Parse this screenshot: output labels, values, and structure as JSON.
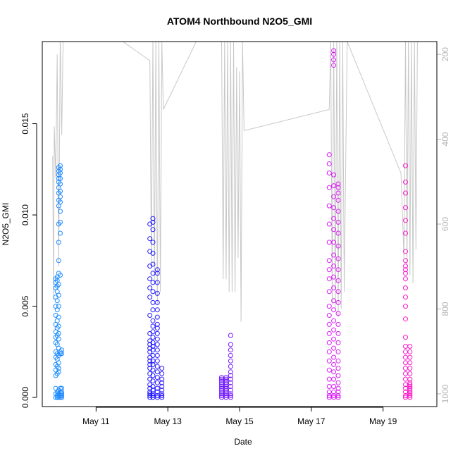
{
  "chart_data": {
    "type": "scatter",
    "title": "ATOM4 Northbound N2O5_GMI",
    "xlabel": "Date",
    "ylabel": "N2O5_GMI",
    "xlim": [
      "2018-05-09T12:00",
      "2018-05-20T12:00"
    ],
    "ylim": [
      -0.0005,
      0.0195
    ],
    "y_ticks": [
      {
        "value": 0.0,
        "label": "0.000"
      },
      {
        "value": 0.005,
        "label": "0.005"
      },
      {
        "value": 0.01,
        "label": "0.010"
      },
      {
        "value": 0.015,
        "label": "0.015"
      }
    ],
    "x_ticks": [
      {
        "value": "2018-05-11",
        "label": "May 11"
      },
      {
        "value": "2018-05-13",
        "label": "May 13"
      },
      {
        "value": "2018-05-15",
        "label": "May 15"
      },
      {
        "value": "2018-05-17",
        "label": "May 17"
      },
      {
        "value": "2018-05-19",
        "label": "May 19"
      }
    ],
    "right_axis": {
      "label": "",
      "range": [
        1030,
        170
      ],
      "reversed": true,
      "ticks": [
        {
          "value": 200,
          "label": "200"
        },
        {
          "value": 400,
          "label": "400"
        },
        {
          "value": 600,
          "label": "600"
        },
        {
          "value": 800,
          "label": "800"
        },
        {
          "value": 1000,
          "label": "1000"
        }
      ]
    },
    "point_color_ramp": [
      "#1e90ff",
      "#1a1aff",
      "#7a1aff",
      "#d51aff",
      "#ff14c8"
    ],
    "pressure_line_color": "#c8c8c8",
    "marker": "open-circle",
    "grid": false,
    "legend": "none",
    "series": [
      {
        "x": "2018-05-09T21:00",
        "values": [
          0.0,
          0.0002,
          0.0005,
          0.0012,
          0.0015,
          0.0018,
          0.0022,
          0.0025,
          0.003,
          0.0033,
          0.0036,
          0.004,
          0.0045,
          0.005,
          0.0055,
          0.006,
          0.0063,
          0.0065
        ]
      },
      {
        "x": "2018-05-09T22:00",
        "values": [
          0.0,
          0.0001,
          0.0003,
          0.0013,
          0.0017,
          0.0021,
          0.0024,
          0.0029,
          0.0034,
          0.0038,
          0.0042,
          0.0048,
          0.0053,
          0.0058,
          0.0061,
          0.0064,
          0.0066
        ]
      },
      {
        "x": "2018-05-09T23:00",
        "values": [
          0.0,
          0.0002,
          0.0004,
          0.0014,
          0.0016,
          0.0019,
          0.0023,
          0.0027,
          0.0032,
          0.0035,
          0.0039,
          0.0044,
          0.005,
          0.0056,
          0.0062,
          0.0068,
          0.0075,
          0.0085,
          0.0095,
          0.0105,
          0.0108,
          0.0112,
          0.0115,
          0.0118,
          0.012,
          0.0122,
          0.0124,
          0.0126
        ]
      },
      {
        "x": "2018-05-10T00:00",
        "values": [
          0.0,
          0.0001,
          0.0003,
          0.0005,
          0.0024,
          0.0025,
          0.0067,
          0.009,
          0.0096,
          0.0102,
          0.0107,
          0.011,
          0.0113,
          0.0117,
          0.012,
          0.0123,
          0.0125,
          0.0127
        ]
      },
      {
        "x": "2018-05-10T01:00",
        "values": [
          0.0,
          0.0001,
          0.0002,
          0.0003,
          0.0005,
          0.0024,
          0.0026
        ]
      },
      {
        "x": "2018-05-12T12:00",
        "values": [
          0.0,
          0.0001,
          0.0002,
          0.0003,
          0.0005,
          0.0007,
          0.001,
          0.0013,
          0.0016,
          0.0018,
          0.002,
          0.0022,
          0.0025,
          0.0027,
          0.0029,
          0.0031,
          0.0035,
          0.0045,
          0.0055,
          0.006,
          0.0065,
          0.0072,
          0.008,
          0.0087,
          0.0095
        ]
      },
      {
        "x": "2018-05-12T14:00",
        "values": [
          0.0,
          0.0001,
          0.0002,
          0.0004,
          0.0006,
          0.0009,
          0.0012,
          0.0015,
          0.0018,
          0.002,
          0.0023,
          0.0026,
          0.0028,
          0.003,
          0.0033,
          0.0036,
          0.0039,
          0.0042,
          0.0048,
          0.0052,
          0.0058,
          0.0063,
          0.0068,
          0.0073,
          0.0079,
          0.0085,
          0.0092,
          0.0096,
          0.0098
        ]
      },
      {
        "x": "2018-05-12T17:00",
        "values": [
          0.0,
          0.0001,
          0.0003,
          0.0005,
          0.0008,
          0.0011,
          0.0014,
          0.0017,
          0.002,
          0.0023,
          0.0026,
          0.0029,
          0.0032,
          0.0035,
          0.0038,
          0.004,
          0.0044,
          0.0048,
          0.0052,
          0.0057,
          0.0063,
          0.0068,
          0.007
        ]
      },
      {
        "x": "2018-05-12T20:00",
        "values": [
          0.0,
          0.0001,
          0.0002,
          0.0004,
          0.0006,
          0.0008,
          0.001,
          0.0013,
          0.0016
        ]
      },
      {
        "x": "2018-05-14T12:00",
        "values": [
          0.0,
          0.0001,
          0.0002,
          0.0003,
          0.0004,
          0.0005,
          0.0006,
          0.0007,
          0.0008,
          0.0009,
          0.001,
          0.0011
        ]
      },
      {
        "x": "2018-05-14T15:00",
        "values": [
          0.0,
          0.0001,
          0.0002,
          0.0003,
          0.0004,
          0.0005,
          0.0006,
          0.0007,
          0.0008,
          0.0009,
          0.001,
          0.0011
        ]
      },
      {
        "x": "2018-05-14T18:00",
        "values": [
          0.0,
          0.0001,
          0.0002,
          0.0004,
          0.0006,
          0.0008,
          0.001,
          0.0012,
          0.0014,
          0.0017,
          0.002,
          0.0023,
          0.0026,
          0.0029,
          0.0034
        ]
      },
      {
        "x": "2018-05-17T12:00",
        "values": [
          0.0,
          0.0001,
          0.0003,
          0.0006,
          0.001,
          0.0015,
          0.002,
          0.0025,
          0.003,
          0.0035,
          0.004,
          0.0045,
          0.005,
          0.0058,
          0.0065,
          0.007,
          0.0075,
          0.0085,
          0.0095,
          0.0105,
          0.0115,
          0.0123,
          0.0128,
          0.0133
        ]
      },
      {
        "x": "2018-05-17T15:00",
        "values": [
          0.0,
          0.0001,
          0.0003,
          0.0006,
          0.001,
          0.0014,
          0.0018,
          0.0022,
          0.0027,
          0.0032,
          0.0037,
          0.0042,
          0.0048,
          0.0053,
          0.006,
          0.0066,
          0.0072,
          0.0078,
          0.0085,
          0.0092,
          0.0098,
          0.0104,
          0.011,
          0.0116,
          0.0122,
          0.0182,
          0.0185,
          0.0188,
          0.019
        ]
      },
      {
        "x": "2018-05-17T18:00",
        "values": [
          0.0,
          0.0001,
          0.0003,
          0.0005,
          0.0008,
          0.0012,
          0.0016,
          0.002,
          0.0025,
          0.003,
          0.0035,
          0.004,
          0.0046,
          0.0052,
          0.0058,
          0.0064,
          0.007,
          0.0076,
          0.0083,
          0.009,
          0.0096,
          0.0102,
          0.0108,
          0.0112,
          0.0115,
          0.0117
        ]
      },
      {
        "x": "2018-05-19T15:00",
        "values": [
          0.0,
          0.0001,
          0.0003,
          0.0005,
          0.0007,
          0.001,
          0.0013,
          0.0016,
          0.0019,
          0.0022,
          0.0025,
          0.0028,
          0.0033,
          0.0043,
          0.005,
          0.0055,
          0.006,
          0.0065,
          0.0068,
          0.007,
          0.0072,
          0.0075,
          0.008,
          0.009,
          0.0097,
          0.0104,
          0.0112,
          0.0118,
          0.0127
        ]
      },
      {
        "x": "2018-05-19T18:00",
        "values": [
          0.0,
          0.0001,
          0.0002,
          0.0003,
          0.0004,
          0.0005,
          0.0006,
          0.0007,
          0.0008,
          0.001,
          0.0013,
          0.0016,
          0.0019,
          0.0022,
          0.0025,
          0.0028
        ]
      }
    ],
    "pressure_track": [
      [
        "2018-05-09T19:00",
        440
      ],
      [
        "2018-05-09T19:30",
        780
      ],
      [
        "2018-05-09T20:00",
        370
      ],
      [
        "2018-05-09T21:00",
        490
      ],
      [
        "2018-05-09T22:00",
        200
      ],
      [
        "2018-05-09T23:00",
        700
      ],
      [
        "2018-05-10T00:00",
        150
      ],
      [
        "2018-05-10T01:00",
        390
      ],
      [
        "2018-05-10T02:00",
        150
      ],
      [
        "2018-05-11T18:00",
        170
      ],
      [
        "2018-05-12T12:00",
        215
      ],
      [
        "2018-05-12T13:00",
        690
      ],
      [
        "2018-05-12T14:00",
        170
      ],
      [
        "2018-05-12T15:00",
        740
      ],
      [
        "2018-05-12T16:00",
        170
      ],
      [
        "2018-05-12T17:00",
        790
      ],
      [
        "2018-05-12T18:00",
        170
      ],
      [
        "2018-05-12T19:00",
        760
      ],
      [
        "2018-05-12T20:00",
        170
      ],
      [
        "2018-05-12T21:00",
        330
      ],
      [
        "2018-05-13T19:00",
        170
      ],
      [
        "2018-05-14T12:00",
        170
      ],
      [
        "2018-05-14T13:00",
        730
      ],
      [
        "2018-05-14T14:00",
        170
      ],
      [
        "2018-05-14T15:00",
        730
      ],
      [
        "2018-05-14T16:00",
        170
      ],
      [
        "2018-05-14T17:00",
        760
      ],
      [
        "2018-05-14T18:00",
        170
      ],
      [
        "2018-05-14T19:00",
        760
      ],
      [
        "2018-05-14T20:00",
        170
      ],
      [
        "2018-05-14T21:00",
        760
      ],
      [
        "2018-05-14T22:00",
        230
      ],
      [
        "2018-05-14T23:00",
        680
      ],
      [
        "2018-05-15T00:00",
        240
      ],
      [
        "2018-05-15T01:00",
        830
      ],
      [
        "2018-05-15T02:00",
        170
      ],
      [
        "2018-05-15T03:00",
        380
      ],
      [
        "2018-05-17T12:00",
        330
      ],
      [
        "2018-05-17T13:00",
        170
      ],
      [
        "2018-05-17T14:00",
        790
      ],
      [
        "2018-05-17T15:00",
        170
      ],
      [
        "2018-05-17T16:00",
        800
      ],
      [
        "2018-05-17T17:00",
        170
      ],
      [
        "2018-05-17T18:00",
        820
      ],
      [
        "2018-05-17T19:00",
        170
      ],
      [
        "2018-05-17T20:00",
        800
      ],
      [
        "2018-05-17T21:00",
        170
      ],
      [
        "2018-05-17T22:00",
        760
      ],
      [
        "2018-05-18T00:00",
        170
      ],
      [
        "2018-05-19T12:00",
        480
      ],
      [
        "2018-05-19T14:00",
        680
      ],
      [
        "2018-05-19T15:00",
        170
      ],
      [
        "2018-05-19T16:00",
        700
      ],
      [
        "2018-05-19T17:00",
        170
      ],
      [
        "2018-05-19T18:00",
        720
      ],
      [
        "2018-05-19T19:00",
        170
      ],
      [
        "2018-05-19T20:00",
        740
      ],
      [
        "2018-05-19T21:00",
        170
      ],
      [
        "2018-05-19T22:00",
        660
      ],
      [
        "2018-05-19T23:00",
        170
      ]
    ]
  }
}
